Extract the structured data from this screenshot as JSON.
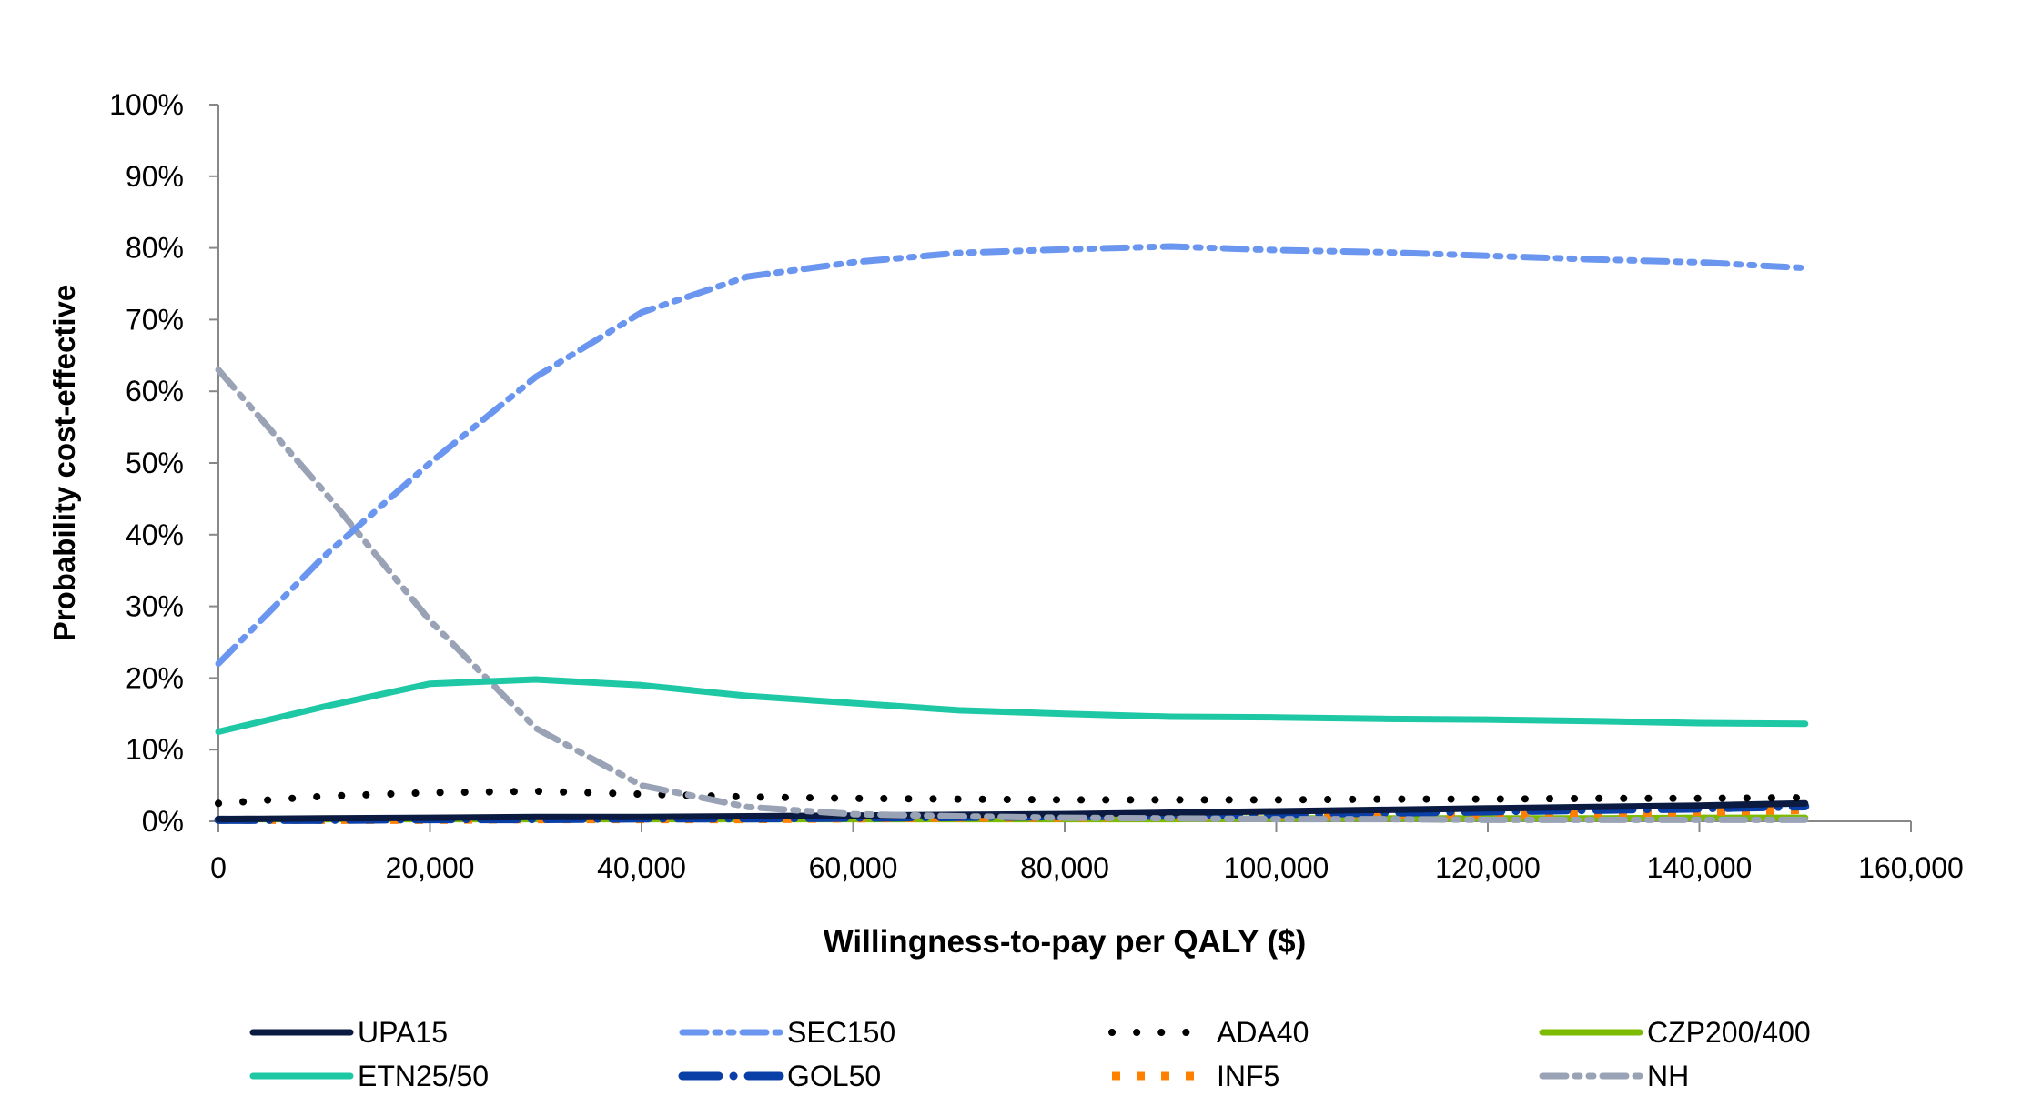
{
  "chart_data": {
    "type": "line",
    "title": "",
    "xlabel": "Willingness-to-pay per QALY ($)",
    "ylabel": "Probability cost-effective",
    "xlim": [
      0,
      160000
    ],
    "ylim": [
      0,
      100
    ],
    "x_ticks": [
      "0",
      "20,000",
      "40,000",
      "60,000",
      "80,000",
      "100,000",
      "120,000",
      "140,000",
      "160,000"
    ],
    "y_ticks": [
      "0%",
      "10%",
      "20%",
      "30%",
      "40%",
      "50%",
      "60%",
      "70%",
      "80%",
      "90%",
      "100%"
    ],
    "grid": false,
    "legend_position": "bottom",
    "x": [
      0,
      10000,
      20000,
      30000,
      40000,
      50000,
      60000,
      70000,
      80000,
      90000,
      100000,
      110000,
      120000,
      130000,
      140000,
      150000
    ],
    "series": [
      {
        "name": "UPA15",
        "color": "#0a1a40",
        "dash": "solid",
        "values": [
          0.3,
          0.4,
          0.5,
          0.6,
          0.6,
          0.7,
          0.8,
          0.9,
          1.0,
          1.2,
          1.4,
          1.6,
          1.8,
          2.0,
          2.2,
          2.5
        ]
      },
      {
        "name": "SEC150",
        "color": "#6a96f0",
        "dash": "dashdotdot",
        "values": [
          22,
          37,
          50,
          62,
          71,
          76,
          78,
          79.3,
          79.8,
          80.2,
          79.7,
          79.4,
          78.9,
          78.4,
          78,
          77.2
        ]
      },
      {
        "name": "ADA40",
        "color": "#000000",
        "dash": "dot",
        "values": [
          2.5,
          3.5,
          4,
          4.2,
          3.8,
          3.4,
          3.2,
          3.1,
          3.0,
          3.0,
          3.0,
          3.1,
          3.1,
          3.2,
          3.2,
          3.3
        ]
      },
      {
        "name": "CZP200/400",
        "color": "#7cbb00",
        "dash": "solid",
        "values": [
          0.3,
          0.3,
          0.3,
          0.3,
          0.3,
          0.3,
          0.3,
          0.3,
          0.3,
          0.3,
          0.4,
          0.4,
          0.4,
          0.4,
          0.5,
          0.5
        ]
      },
      {
        "name": "ETN25/50",
        "color": "#1ec8a5",
        "dash": "solid",
        "values": [
          12.5,
          16,
          19.2,
          19.8,
          19,
          17.5,
          16.5,
          15.5,
          15,
          14.6,
          14.5,
          14.3,
          14.2,
          14,
          13.7,
          13.6
        ]
      },
      {
        "name": "GOL50",
        "color": "#0a3fa8",
        "dash": "longdot",
        "values": [
          0.2,
          0.2,
          0.3,
          0.3,
          0.4,
          0.4,
          0.5,
          0.6,
          0.7,
          0.8,
          1.0,
          1.2,
          1.4,
          1.6,
          1.8,
          2.1
        ]
      },
      {
        "name": "INF5",
        "color": "#ff8000",
        "dash": "square",
        "values": [
          0.2,
          0.2,
          0.2,
          0.3,
          0.3,
          0.3,
          0.4,
          0.5,
          0.5,
          0.6,
          0.7,
          0.8,
          0.9,
          1.1,
          1.3,
          1.6
        ]
      },
      {
        "name": "NH",
        "color": "#9aa3b5",
        "dash": "dashdotdot",
        "values": [
          63,
          46,
          28,
          13,
          5,
          2,
          1,
          0.7,
          0.5,
          0.4,
          0.3,
          0.3,
          0.2,
          0.2,
          0.2,
          0.2
        ]
      }
    ]
  }
}
